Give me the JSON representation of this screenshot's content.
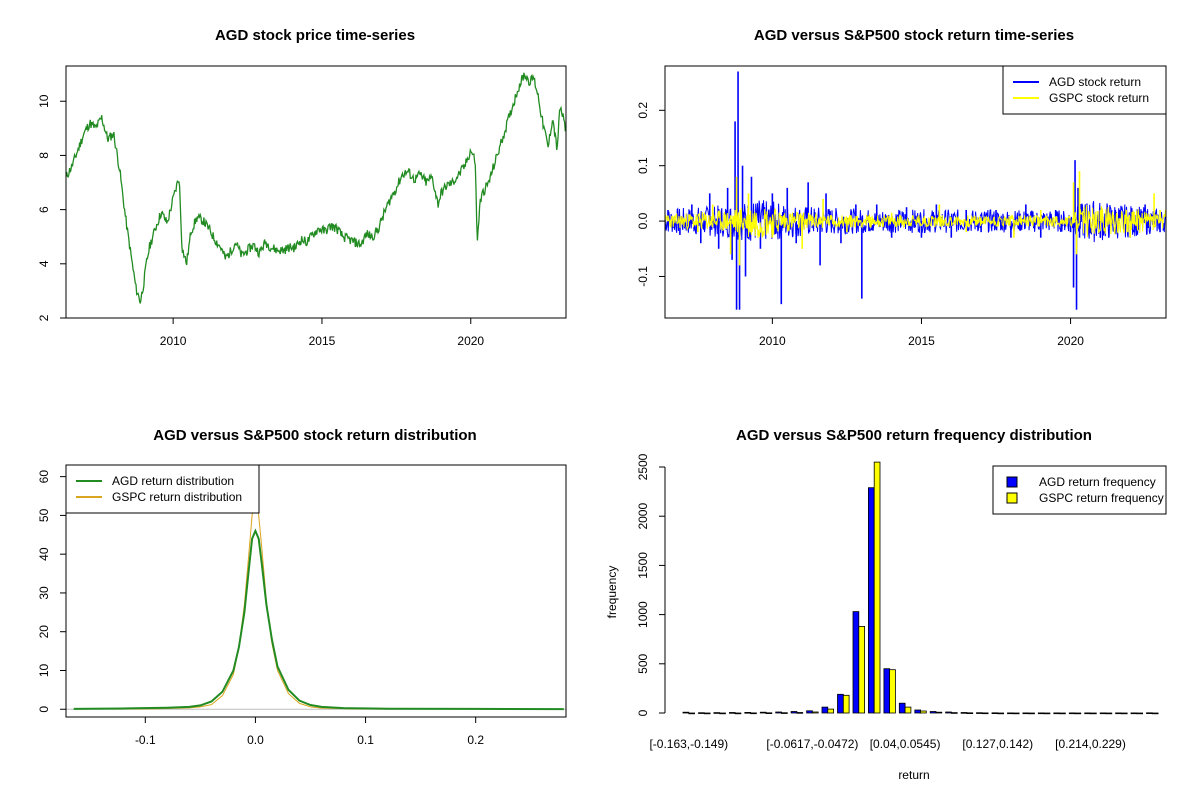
{
  "colors": {
    "price": "#228b22",
    "agd_ret": "#0000ff",
    "gspc_ret": "#ffff00",
    "agd_dens": "#228b22",
    "gspc_dens": "#daa520",
    "bar_agd": "#0000ff",
    "bar_gspc": "#ffff00",
    "zero_line": "#bebebe"
  },
  "chart_data": [
    {
      "id": "price",
      "type": "line",
      "title": "AGD stock price time-series",
      "xlabel": "",
      "ylabel": "",
      "xlim": [
        2006.4,
        2023.2
      ],
      "ylim": [
        2.0,
        11.3
      ],
      "xticks": [
        2010,
        2015,
        2020
      ],
      "xtick_labels": [
        "2010",
        "2015",
        "2020"
      ],
      "yticks": [
        2,
        4,
        6,
        8,
        10
      ],
      "ytick_labels": [
        "2",
        "4",
        "6",
        "8",
        "10"
      ],
      "series": [
        {
          "name": "AGD price",
          "color_key": "price",
          "x": [
            2006.4,
            2006.6,
            2006.8,
            2007.0,
            2007.2,
            2007.4,
            2007.6,
            2007.8,
            2008.0,
            2008.2,
            2008.4,
            2008.6,
            2008.75,
            2008.9,
            2009.0,
            2009.1,
            2009.2,
            2009.4,
            2009.6,
            2009.8,
            2010.0,
            2010.2,
            2010.3,
            2010.45,
            2010.6,
            2010.8,
            2011.0,
            2011.2,
            2011.4,
            2011.6,
            2011.75,
            2011.9,
            2012.1,
            2012.3,
            2012.5,
            2012.7,
            2012.9,
            2013.1,
            2013.3,
            2013.5,
            2013.7,
            2013.9,
            2014.1,
            2014.3,
            2014.5,
            2014.7,
            2014.9,
            2015.1,
            2015.3,
            2015.5,
            2015.7,
            2015.9,
            2016.1,
            2016.3,
            2016.5,
            2016.7,
            2016.9,
            2017.1,
            2017.3,
            2017.5,
            2017.7,
            2017.9,
            2018.1,
            2018.3,
            2018.5,
            2018.7,
            2018.9,
            2019.0,
            2019.2,
            2019.4,
            2019.6,
            2019.8,
            2020.0,
            2020.15,
            2020.22,
            2020.3,
            2020.4,
            2020.6,
            2020.8,
            2021.0,
            2021.2,
            2021.4,
            2021.6,
            2021.8,
            2022.0,
            2022.1,
            2022.25,
            2022.4,
            2022.6,
            2022.75,
            2022.9,
            2023.0,
            2023.1,
            2023.2
          ],
          "y": [
            7.2,
            7.6,
            8.2,
            8.8,
            9.2,
            9.0,
            9.4,
            8.6,
            8.8,
            7.5,
            5.7,
            4.2,
            3.1,
            2.6,
            3.2,
            4.0,
            4.6,
            5.3,
            5.9,
            5.5,
            6.4,
            7.2,
            4.6,
            4.0,
            5.2,
            5.7,
            5.6,
            5.3,
            4.9,
            4.6,
            4.2,
            4.4,
            4.8,
            4.3,
            4.5,
            4.7,
            4.4,
            4.8,
            4.6,
            4.5,
            4.5,
            4.6,
            4.6,
            4.9,
            4.8,
            5.1,
            5.3,
            5.2,
            5.4,
            5.3,
            5.0,
            4.9,
            4.8,
            4.7,
            5.1,
            5.0,
            5.3,
            5.9,
            6.4,
            6.8,
            7.3,
            7.4,
            7.1,
            7.3,
            7.0,
            7.2,
            6.2,
            6.6,
            6.9,
            7.0,
            7.3,
            7.6,
            8.2,
            7.8,
            4.7,
            6.2,
            6.6,
            7.0,
            7.7,
            8.4,
            9.1,
            9.8,
            10.5,
            11.0,
            10.7,
            10.9,
            10.3,
            9.3,
            8.3,
            9.4,
            8.2,
            9.8,
            9.4,
            8.9
          ]
        }
      ]
    },
    {
      "id": "returns",
      "type": "line",
      "title": "AGD versus S&P500 stock return time-series",
      "xlabel": "",
      "ylabel": "",
      "xlim": [
        2006.4,
        2023.2
      ],
      "ylim": [
        -0.175,
        0.28
      ],
      "xticks": [
        2010,
        2015,
        2020
      ],
      "xtick_labels": [
        "2010",
        "2015",
        "2020"
      ],
      "yticks": [
        -0.1,
        0.0,
        0.1,
        0.2
      ],
      "ytick_labels": [
        "-0.1",
        "0.0",
        "0.1",
        "0.2"
      ],
      "legend": {
        "position": "top-right",
        "entries": [
          "AGD stock return",
          "GSPC stock return"
        ]
      },
      "series": [
        {
          "name": "AGD stock return",
          "color_key": "agd_ret",
          "x": [
            2006.5,
            2006.9,
            2007.3,
            2007.6,
            2007.9,
            2008.2,
            2008.5,
            2008.65,
            2008.75,
            2008.8,
            2008.85,
            2008.9,
            2009.0,
            2009.1,
            2009.3,
            2009.6,
            2010.0,
            2010.3,
            2010.5,
            2010.8,
            2011.2,
            2011.6,
            2011.8,
            2012.3,
            2012.8,
            2013.0,
            2013.5,
            2014.0,
            2014.5,
            2015.0,
            2015.5,
            2016.0,
            2016.5,
            2017.0,
            2017.5,
            2018.0,
            2018.5,
            2019.0,
            2019.5,
            2020.0,
            2020.1,
            2020.15,
            2020.2,
            2020.25,
            2020.3,
            2020.5,
            2021.0,
            2021.5,
            2022.0,
            2022.5,
            2023.0
          ],
          "y": [
            0.02,
            -0.025,
            0.03,
            -0.04,
            0.05,
            -0.05,
            0.06,
            -0.07,
            0.18,
            -0.16,
            0.27,
            -0.16,
            0.1,
            -0.1,
            0.08,
            -0.05,
            0.05,
            -0.15,
            0.06,
            -0.04,
            0.07,
            -0.08,
            0.05,
            -0.04,
            0.03,
            -0.14,
            0.03,
            -0.03,
            0.025,
            -0.03,
            0.03,
            -0.03,
            0.02,
            -0.02,
            0.02,
            -0.03,
            0.03,
            -0.03,
            0.02,
            -0.02,
            -0.12,
            0.11,
            -0.16,
            0.06,
            -0.03,
            0.03,
            -0.03,
            0.02,
            -0.03,
            0.03,
            -0.02
          ],
          "band": {
            "x": [
              2006.4,
              2008.5,
              2009.5,
              2011.0,
              2013.0,
              2020.0,
              2020.6,
              2023.2
            ],
            "half_width": [
              0.022,
              0.03,
              0.04,
              0.028,
              0.022,
              0.02,
              0.04,
              0.02
            ]
          }
        },
        {
          "name": "GSPC stock return",
          "color_key": "gspc_ret",
          "x": [
            2006.5,
            2007.5,
            2008.0,
            2008.6,
            2008.8,
            2008.9,
            2009.2,
            2010.0,
            2011.0,
            2011.7,
            2012.5,
            2014.0,
            2015.6,
            2016.5,
            2018.1,
            2019.0,
            2020.1,
            2020.2,
            2020.3,
            2021.0,
            2022.0,
            2022.8,
            2023.0
          ],
          "y": [
            0.01,
            -0.02,
            0.03,
            -0.06,
            0.08,
            -0.08,
            0.05,
            -0.03,
            -0.05,
            0.04,
            -0.02,
            0.015,
            0.03,
            -0.02,
            -0.03,
            0.02,
            0.07,
            -0.06,
            0.09,
            0.02,
            -0.03,
            0.05,
            0.02
          ],
          "band": {
            "x": [
              2006.4,
              2008.5,
              2009.3,
              2010.5,
              2012.0,
              2020.0,
              2020.5,
              2023.2
            ],
            "half_width": [
              0.012,
              0.02,
              0.035,
              0.02,
              0.012,
              0.01,
              0.03,
              0.018
            ]
          }
        }
      ]
    },
    {
      "id": "density",
      "type": "line",
      "title": "AGD versus S&P500 stock return distribution",
      "xlabel": "",
      "ylabel": "",
      "xlim": [
        -0.172,
        0.282
      ],
      "ylim": [
        -2,
        63
      ],
      "xticks": [
        -0.1,
        0.0,
        0.1,
        0.2
      ],
      "xtick_labels": [
        "-0.1",
        "0.0",
        "0.1",
        "0.2"
      ],
      "yticks": [
        0,
        10,
        20,
        30,
        40,
        50,
        60
      ],
      "ytick_labels": [
        "0",
        "10",
        "20",
        "30",
        "40",
        "50",
        "60"
      ],
      "legend": {
        "position": "top-left",
        "entries": [
          "AGD return distribution",
          "GSPC return distribution"
        ]
      },
      "series": [
        {
          "name": "AGD return distribution",
          "color_key": "agd_dens",
          "x": [
            -0.165,
            -0.12,
            -0.08,
            -0.06,
            -0.05,
            -0.04,
            -0.03,
            -0.02,
            -0.015,
            -0.01,
            -0.006,
            -0.003,
            0.0,
            0.003,
            0.006,
            0.01,
            0.015,
            0.02,
            0.03,
            0.04,
            0.05,
            0.06,
            0.08,
            0.12,
            0.2,
            0.28
          ],
          "y": [
            0.1,
            0.2,
            0.4,
            0.6,
            1.0,
            2.0,
            4.5,
            10,
            16,
            25,
            36,
            44,
            46,
            44,
            37,
            27,
            18,
            11,
            5,
            2.2,
            1.1,
            0.6,
            0.3,
            0.15,
            0.1,
            0.05
          ]
        },
        {
          "name": "GSPC return distribution",
          "color_key": "gspc_dens",
          "x": [
            -0.13,
            -0.09,
            -0.06,
            -0.05,
            -0.04,
            -0.03,
            -0.02,
            -0.015,
            -0.01,
            -0.006,
            -0.003,
            -0.001,
            0.0,
            0.001,
            0.003,
            0.006,
            0.01,
            0.015,
            0.02,
            0.03,
            0.04,
            0.05,
            0.06,
            0.09,
            0.12
          ],
          "y": [
            0.05,
            0.15,
            0.35,
            0.6,
            1.2,
            3.5,
            9,
            16,
            27,
            40,
            50,
            54,
            55,
            54,
            50,
            41,
            28,
            17,
            10,
            4,
            1.5,
            0.6,
            0.3,
            0.1,
            0.05
          ]
        }
      ]
    },
    {
      "id": "histogram",
      "type": "bar",
      "title": "AGD versus S&P500 return frequency distribution",
      "xlabel": "return",
      "ylabel": "frequency",
      "ylim": [
        0,
        2500
      ],
      "yticks": [
        0,
        500,
        1000,
        1500,
        2000,
        2500
      ],
      "ytick_labels": [
        "0",
        "500",
        "1000",
        "1500",
        "2000",
        "2500"
      ],
      "visible_category_labels": [
        {
          "index": 0,
          "label": "[-0.163,-0.149)"
        },
        {
          "index": 8,
          "label": "[-0.0617,-0.0472)"
        },
        {
          "index": 14,
          "label": "[0.04,0.0545)"
        },
        {
          "index": 20,
          "label": "[0.127,0.142)"
        },
        {
          "index": 26,
          "label": "[0.214,0.229)"
        }
      ],
      "num_bins": 31,
      "legend": {
        "position": "top-right",
        "entries": [
          "AGD return frequency",
          "GSPC return frequency"
        ]
      },
      "series": [
        {
          "name": "AGD return frequency",
          "color_key": "bar_agd",
          "values": [
            8,
            3,
            4,
            5,
            6,
            8,
            10,
            15,
            22,
            60,
            190,
            1030,
            2290,
            450,
            100,
            30,
            15,
            10,
            5,
            3,
            2,
            1,
            1,
            1,
            1,
            1,
            1,
            1,
            1,
            1,
            2
          ]
        },
        {
          "name": "GSPC return frequency",
          "color_key": "bar_gspc",
          "values": [
            0,
            0,
            0,
            0,
            1,
            2,
            3,
            5,
            10,
            40,
            180,
            880,
            2620,
            440,
            60,
            20,
            8,
            4,
            2,
            1,
            0,
            0,
            0,
            0,
            0,
            0,
            0,
            0,
            0,
            0,
            0
          ]
        }
      ]
    }
  ]
}
